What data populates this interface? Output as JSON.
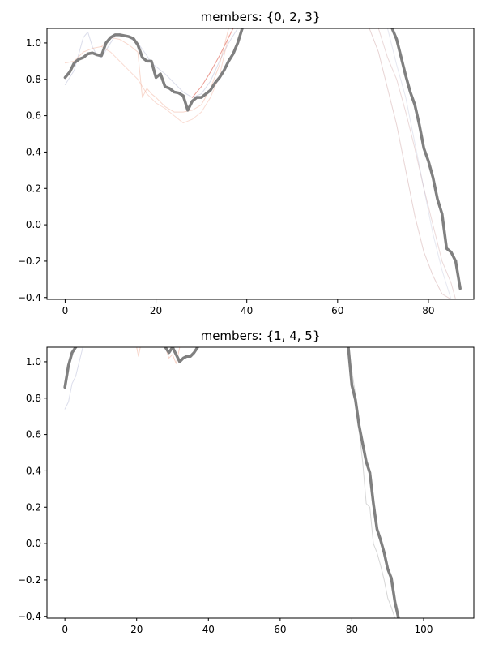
{
  "chart_data": [
    {
      "type": "line",
      "title": "members: {0, 2, 3}",
      "xlabel": "",
      "ylabel": "",
      "xlim": [
        -4,
        90
      ],
      "ylim": [
        -0.41,
        1.08
      ],
      "xticks": [
        0,
        20,
        40,
        60,
        80
      ],
      "yticks": [
        -0.4,
        -0.2,
        0.0,
        0.2,
        0.4,
        0.6,
        0.8,
        1.0
      ],
      "xtick_labels": [
        "0",
        "20",
        "40",
        "60",
        "80"
      ],
      "ytick_labels": [
        "−0.4",
        "−0.2",
        "0.0",
        "0.2",
        "0.4",
        "0.6",
        "0.8",
        "1.0"
      ],
      "grid": false,
      "colors": {
        "mean": "#808080",
        "blue": "#b8bcd8",
        "red": "#d94a3a",
        "salmon": "#f0a890",
        "faint": "#e6cfcf"
      },
      "series": [
        {
          "role": "thin",
          "color": "#b8bcd8",
          "opacity": 0.5,
          "width": 1,
          "x": [
            0,
            2,
            4,
            5,
            6,
            7,
            8,
            9,
            10,
            11,
            12,
            14,
            16,
            18,
            19,
            20,
            22,
            24,
            26,
            28,
            30,
            32,
            34,
            36,
            38
          ],
          "y": [
            0.77,
            0.85,
            1.03,
            1.06,
            0.98,
            0.93,
            0.92,
            0.96,
            1.0,
            1.04,
            1.05,
            1.03,
            1.0,
            0.93,
            0.89,
            0.87,
            0.83,
            0.78,
            0.73,
            0.7,
            0.72,
            0.79,
            0.9,
            1.0,
            1.08
          ]
        },
        {
          "role": "thin",
          "color": "#f0a890",
          "opacity": 0.45,
          "width": 1,
          "x": [
            0,
            2,
            4,
            6,
            8,
            10,
            12,
            14,
            16,
            17,
            18,
            19,
            20,
            22,
            24,
            26,
            28,
            30,
            32,
            34,
            36
          ],
          "y": [
            0.89,
            0.9,
            0.95,
            0.97,
            0.98,
            1.03,
            1.02,
            0.99,
            0.95,
            0.7,
            0.75,
            0.72,
            0.7,
            0.65,
            0.62,
            0.62,
            0.63,
            0.66,
            0.75,
            0.88,
            1.08
          ]
        },
        {
          "role": "thin",
          "color": "#f0a890",
          "opacity": 0.4,
          "width": 1,
          "x": [
            8,
            10,
            12,
            14,
            16,
            18,
            20,
            22,
            24,
            26,
            28,
            30,
            32,
            34,
            36
          ],
          "y": [
            0.98,
            0.95,
            0.9,
            0.85,
            0.8,
            0.72,
            0.67,
            0.64,
            0.6,
            0.56,
            0.58,
            0.62,
            0.7,
            0.82,
            1.04
          ]
        },
        {
          "role": "thin",
          "color": "#d94a3a",
          "opacity": 0.55,
          "width": 1,
          "x": [
            28,
            30,
            32,
            34,
            35,
            36,
            37
          ],
          "y": [
            0.7,
            0.76,
            0.84,
            0.93,
            0.98,
            1.03,
            1.08
          ]
        },
        {
          "role": "thin",
          "color": "#e6cfcf",
          "opacity": 0.9,
          "width": 1,
          "x": [
            67,
            69,
            71,
            73,
            75,
            77,
            79,
            81,
            83,
            85
          ],
          "y": [
            1.08,
            0.95,
            0.75,
            0.55,
            0.3,
            0.05,
            -0.15,
            -0.28,
            -0.38,
            -0.41
          ]
        },
        {
          "role": "thin",
          "color": "#e6cfcf",
          "opacity": 0.8,
          "width": 1,
          "x": [
            69,
            71,
            73,
            75,
            77,
            79,
            81,
            83,
            85,
            86
          ],
          "y": [
            1.08,
            0.92,
            0.8,
            0.62,
            0.42,
            0.2,
            0.0,
            -0.2,
            -0.32,
            -0.41
          ]
        },
        {
          "role": "thin",
          "color": "#b8bcd8",
          "opacity": 0.35,
          "width": 1,
          "x": [
            71,
            73,
            75,
            77,
            79,
            81,
            83,
            85
          ],
          "y": [
            1.08,
            0.88,
            0.7,
            0.45,
            0.2,
            -0.05,
            -0.25,
            -0.41
          ]
        },
        {
          "role": "mean",
          "color": "#808080",
          "opacity": 1,
          "width": 3.5,
          "x": [
            0,
            1,
            2,
            3,
            4,
            5,
            6,
            7,
            8,
            9,
            10,
            11,
            12,
            13,
            14,
            15,
            16,
            17,
            18,
            19,
            20,
            21,
            22,
            23,
            24,
            25,
            26,
            27,
            28,
            29,
            30,
            31,
            32,
            33,
            34,
            35,
            36,
            37,
            38,
            39,
            40,
            41
          ],
          "y": [
            0.81,
            0.84,
            0.89,
            0.91,
            0.92,
            0.94,
            0.945,
            0.935,
            0.93,
            1.0,
            1.03,
            1.045,
            1.045,
            1.04,
            1.035,
            1.025,
            0.99,
            0.92,
            0.9,
            0.9,
            0.81,
            0.83,
            0.76,
            0.75,
            0.73,
            0.725,
            0.71,
            0.63,
            0.68,
            0.7,
            0.7,
            0.72,
            0.74,
            0.78,
            0.81,
            0.85,
            0.9,
            0.94,
            1.0,
            1.08,
            1.12,
            1.16
          ]
        },
        {
          "role": "mean",
          "color": "#808080",
          "opacity": 1,
          "width": 3.5,
          "x": [
            72,
            73,
            74,
            75,
            76,
            77,
            78,
            79,
            80,
            81,
            82,
            83,
            84,
            85,
            86
          ],
          "y": [
            1.08,
            1.02,
            0.92,
            0.82,
            0.73,
            0.66,
            0.55,
            0.42,
            0.35,
            0.26,
            0.14,
            0.06,
            -0.13,
            -0.15,
            -0.2
          ]
        },
        {
          "role": "mean",
          "color": "#808080",
          "opacity": 1,
          "width": 3.5,
          "x": [
            86,
            87
          ],
          "y": [
            -0.2,
            -0.35
          ]
        }
      ]
    },
    {
      "type": "line",
      "title": "members: {1, 4, 5}",
      "xlabel": "",
      "ylabel": "",
      "xlim": [
        -5,
        114
      ],
      "ylim": [
        -0.41,
        1.08
      ],
      "xticks": [
        0,
        20,
        40,
        60,
        80,
        100
      ],
      "yticks": [
        -0.4,
        -0.2,
        0.0,
        0.2,
        0.4,
        0.6,
        0.8,
        1.0
      ],
      "xtick_labels": [
        "0",
        "20",
        "40",
        "60",
        "80",
        "100"
      ],
      "ytick_labels": [
        "−0.4",
        "−0.2",
        "0.0",
        "0.2",
        "0.4",
        "0.6",
        "0.8",
        "1.0"
      ],
      "grid": false,
      "colors": {
        "mean": "#808080",
        "blue": "#b8bcd8",
        "red": "#d94a3a",
        "salmon": "#f0a890",
        "faint": "#e6cfcf"
      },
      "series": [
        {
          "role": "thin",
          "color": "#b8bcd8",
          "opacity": 0.5,
          "width": 1,
          "x": [
            0,
            1,
            2,
            3,
            4,
            5
          ],
          "y": [
            0.74,
            0.78,
            0.88,
            0.92,
            1.0,
            1.08
          ]
        },
        {
          "role": "thin",
          "color": "#f0a890",
          "opacity": 0.5,
          "width": 1,
          "x": [
            20,
            20.5,
            21
          ],
          "y": [
            1.08,
            1.03,
            1.08
          ]
        },
        {
          "role": "thin",
          "color": "#f0a890",
          "opacity": 0.5,
          "width": 1,
          "x": [
            28,
            29,
            30,
            31,
            32
          ],
          "y": [
            1.08,
            1.02,
            1.04,
            0.99,
            1.08
          ]
        },
        {
          "role": "thin",
          "color": "#cccccc",
          "opacity": 0.8,
          "width": 1,
          "x": [
            79,
            80,
            81,
            82,
            83,
            84,
            85,
            86,
            87,
            88,
            89,
            90,
            91,
            92
          ],
          "y": [
            1.08,
            0.95,
            0.82,
            0.62,
            0.45,
            0.22,
            0.2,
            0.0,
            -0.05,
            -0.12,
            -0.2,
            -0.3,
            -0.35,
            -0.41
          ]
        },
        {
          "role": "mean",
          "color": "#808080",
          "opacity": 1,
          "width": 3.5,
          "x": [
            0,
            1,
            2,
            3,
            4,
            5
          ],
          "y": [
            0.86,
            0.98,
            1.05,
            1.08,
            1.1,
            1.12
          ]
        },
        {
          "role": "mean",
          "color": "#808080",
          "opacity": 1,
          "width": 3.5,
          "x": [
            28,
            29,
            30,
            31,
            32,
            33,
            34,
            35,
            36,
            37
          ],
          "y": [
            1.08,
            1.05,
            1.08,
            1.04,
            1.0,
            1.02,
            1.03,
            1.03,
            1.05,
            1.08
          ]
        },
        {
          "role": "mean",
          "color": "#808080",
          "opacity": 1,
          "width": 3.5,
          "x": [
            79,
            80,
            81,
            82,
            83,
            84,
            85,
            86,
            87,
            88,
            89,
            90,
            91,
            92,
            93
          ],
          "y": [
            1.08,
            0.87,
            0.79,
            0.65,
            0.55,
            0.45,
            0.39,
            0.22,
            0.08,
            0.02,
            -0.05,
            -0.14,
            -0.19,
            -0.32,
            -0.41
          ]
        }
      ]
    }
  ]
}
